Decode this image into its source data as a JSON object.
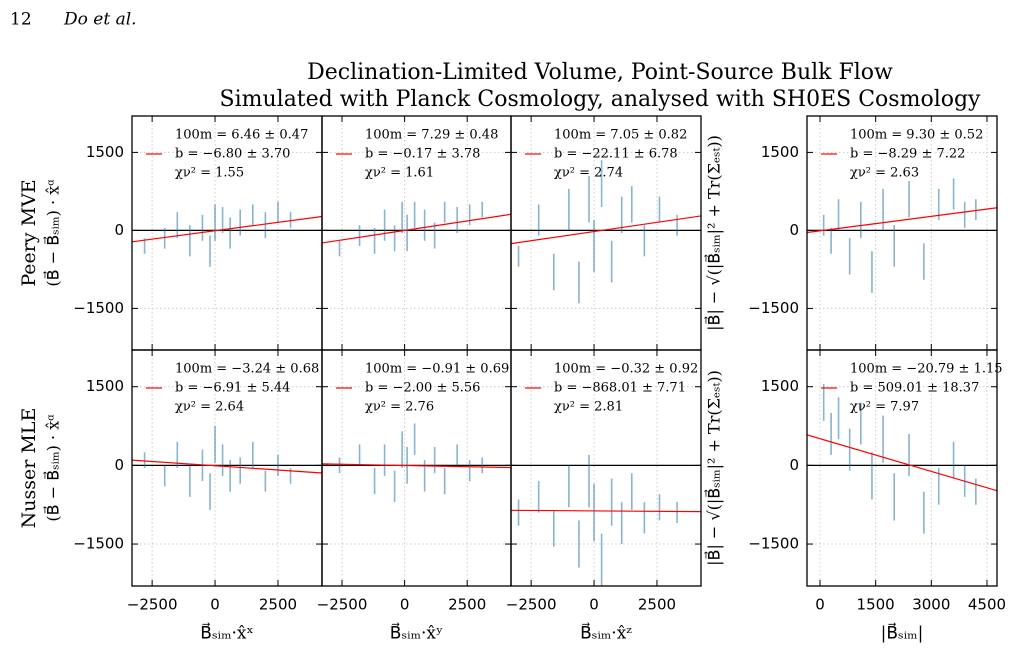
{
  "header": {
    "page": "12",
    "authors": "Do et al."
  },
  "title": [
    "Declination-Limited Volume, Point-Source Bulk Flow",
    "Simulated with Planck Cosmology, analysed with SH0ES Cosmology"
  ],
  "chart_data": [
    {
      "type": "scatter",
      "row_label": "Peery MVE",
      "ylabel": "(B⃗ − B⃗ₛᵢₘ) · x̂ᵅ",
      "xlim": [
        -3300,
        4250
      ],
      "ylim": [
        -2300,
        2200
      ],
      "xticks": [
        -2500,
        0,
        2500
      ],
      "yticks": [
        {
          "value": -1500,
          "label": "−1500"
        },
        0,
        1500
      ],
      "grid": true,
      "annotation": [
        "100m = 6.46 ± 0.47",
        "b = −6.80 ± 3.70",
        "χν² = 1.55"
      ],
      "series": [
        {
          "color": "#1f77b4",
          "x": [
            -2800,
            -2000,
            -1500,
            -1000,
            -500,
            -200,
            0,
            300,
            600,
            1000,
            1500,
            2000,
            2500,
            3000
          ],
          "values": [
            -300,
            -150,
            100,
            -200,
            50,
            -400,
            150,
            200,
            -50,
            150,
            300,
            100,
            350,
            200
          ],
          "errors": [
            150,
            200,
            250,
            300,
            250,
            300,
            350,
            250,
            300,
            250,
            200,
            250,
            200,
            150
          ]
        },
        {
          "color": "#ff0000",
          "x": [
            -3300,
            4250
          ],
          "values": [
            -220,
            268
          ]
        }
      ]
    },
    {
      "type": "scatter",
      "xlim": [
        -3300,
        4250
      ],
      "ylim": [
        -2300,
        2200
      ],
      "xticks": [
        -2500,
        0,
        2500
      ],
      "yticks": [
        -1500,
        0,
        1500
      ],
      "grid": true,
      "annotation": [
        "100m = 7.29 ± 0.48",
        "b = −0.17 ± 3.78",
        "χν² = 1.61"
      ],
      "series": [
        {
          "color": "#1f77b4",
          "x": [
            -2600,
            -1800,
            -1200,
            -800,
            -400,
            -100,
            100,
            400,
            800,
            1200,
            1600,
            2100,
            2600,
            3100
          ],
          "values": [
            -350,
            -100,
            -200,
            100,
            -150,
            250,
            -50,
            300,
            100,
            -100,
            350,
            200,
            300,
            400
          ],
          "errors": [
            150,
            200,
            250,
            300,
            250,
            300,
            350,
            250,
            300,
            250,
            200,
            250,
            200,
            150
          ]
        },
        {
          "color": "#ff0000",
          "x": [
            -3300,
            4250
          ],
          "values": [
            -241,
            310
          ]
        }
      ]
    },
    {
      "type": "scatter",
      "xlim": [
        -3300,
        4250
      ],
      "ylim": [
        -2300,
        2200
      ],
      "xticks": [
        -2500,
        0,
        2500
      ],
      "yticks": [
        -1500,
        0,
        1500
      ],
      "grid": true,
      "annotation": [
        "100m = 7.05 ± 0.82",
        "b = −22.11 ± 6.78",
        "χν² = 2.74"
      ],
      "series": [
        {
          "color": "#1f77b4",
          "x": [
            -3000,
            -2200,
            -1600,
            -1000,
            -600,
            -200,
            0,
            300,
            700,
            1100,
            1500,
            2000,
            2600,
            3300
          ],
          "values": [
            -500,
            200,
            -800,
            400,
            -1000,
            600,
            -300,
            900,
            -600,
            300,
            500,
            -200,
            400,
            100
          ],
          "errors": [
            200,
            300,
            350,
            400,
            400,
            450,
            500,
            450,
            400,
            350,
            350,
            300,
            250,
            200
          ]
        },
        {
          "color": "#ff0000",
          "x": [
            -3300,
            4250
          ],
          "values": [
            -255,
            278
          ]
        }
      ]
    },
    {
      "type": "scatter",
      "ylabel": "|B⃗| − √(|B⃗ₛᵢₘ|² + Tr(Σₑₛₜ))",
      "xlim": [
        -350,
        4770
      ],
      "ylim": [
        -2300,
        2200
      ],
      "xticks": [
        0,
        1500,
        3000,
        4500
      ],
      "yticks": [
        {
          "value": -1500,
          "label": "−1500"
        },
        0,
        1500
      ],
      "grid": true,
      "annotation": [
        "100m = 9.30 ± 0.52",
        "b = −8.29 ± 7.22",
        "χν² = 2.63"
      ],
      "series": [
        {
          "color": "#1f77b4",
          "x": [
            100,
            300,
            500,
            800,
            1100,
            1400,
            1700,
            2000,
            2400,
            2800,
            3200,
            3600,
            3900,
            4200
          ],
          "values": [
            100,
            -200,
            300,
            -500,
            200,
            -800,
            400,
            -300,
            600,
            -600,
            500,
            700,
            300,
            400
          ],
          "errors": [
            200,
            250,
            300,
            350,
            350,
            400,
            400,
            400,
            350,
            350,
            300,
            300,
            250,
            200
          ]
        },
        {
          "color": "#ff0000",
          "x": [
            -350,
            4770
          ],
          "values": [
            -41,
            435
          ]
        }
      ]
    },
    {
      "type": "scatter",
      "row_label": "Nusser MLE",
      "ylabel": "(B⃗ − B⃗ₛᵢₘ) · x̂ᵅ",
      "xlabel": "B⃗ₛᵢₘ·x̂ˣ",
      "xlim": [
        -3300,
        4250
      ],
      "ylim": [
        -2300,
        2200
      ],
      "xticks": [
        {
          "value": -2500,
          "label": "−2500"
        },
        0,
        2500
      ],
      "yticks": [
        {
          "value": -1500,
          "label": "−1500"
        },
        0,
        1500
      ],
      "grid": true,
      "annotation": [
        "100m = −3.24 ± 0.68",
        "b = −6.91 ± 5.44",
        "χν² = 2.64"
      ],
      "series": [
        {
          "color": "#1f77b4",
          "x": [
            -2800,
            -2000,
            -1500,
            -1000,
            -500,
            -200,
            0,
            300,
            600,
            1000,
            1500,
            2000,
            2500,
            3000
          ],
          "values": [
            100,
            -200,
            200,
            -300,
            0,
            -500,
            400,
            100,
            -200,
            -100,
            200,
            -300,
            0,
            -200
          ],
          "errors": [
            150,
            200,
            250,
            300,
            300,
            350,
            350,
            300,
            300,
            250,
            250,
            200,
            200,
            150
          ]
        },
        {
          "color": "#ff0000",
          "x": [
            -3300,
            4250
          ],
          "values": [
            100,
            -145
          ]
        }
      ]
    },
    {
      "type": "scatter",
      "xlabel": "B⃗ₛᵢₘ·x̂ʸ",
      "xlim": [
        -3300,
        4250
      ],
      "ylim": [
        -2300,
        2200
      ],
      "xticks": [
        {
          "value": -2500,
          "label": "−2500"
        },
        0,
        2500
      ],
      "yticks": [
        -1500,
        0,
        1500
      ],
      "grid": true,
      "annotation": [
        "100m = −0.91 ± 0.69",
        "b = −2.00 ± 5.56",
        "χν² = 2.76"
      ],
      "series": [
        {
          "color": "#1f77b4",
          "x": [
            -2600,
            -1800,
            -1200,
            -800,
            -400,
            -100,
            100,
            400,
            800,
            1200,
            1600,
            2100,
            2600,
            3100
          ],
          "values": [
            0,
            200,
            -300,
            100,
            -400,
            300,
            0,
            500,
            -200,
            100,
            -300,
            200,
            -100,
            0
          ],
          "errors": [
            150,
            200,
            250,
            300,
            300,
            350,
            350,
            300,
            300,
            250,
            250,
            200,
            200,
            150
          ]
        },
        {
          "color": "#ff0000",
          "x": [
            -3300,
            4250
          ],
          "values": [
            28,
            -41
          ]
        }
      ]
    },
    {
      "type": "scatter",
      "xlabel": "B⃗ₛᵢₘ·x̂ᶻ",
      "xlim": [
        -3300,
        4250
      ],
      "ylim": [
        -2300,
        2200
      ],
      "xticks": [
        {
          "value": -2500,
          "label": "−2500"
        },
        0,
        2500
      ],
      "yticks": [
        -1500,
        0,
        1500
      ],
      "grid": true,
      "annotation": [
        "100m = −0.32 ± 0.92",
        "b = −868.01 ± 7.71",
        "χν² = 2.81"
      ],
      "series": [
        {
          "color": "#1f77b4",
          "x": [
            -3000,
            -2200,
            -1600,
            -1000,
            -600,
            -200,
            0,
            300,
            700,
            1100,
            1500,
            2000,
            2600,
            3300
          ],
          "values": [
            -900,
            -600,
            -1200,
            -400,
            -1500,
            -300,
            -900,
            -1800,
            -700,
            -1100,
            -500,
            -1000,
            -800,
            -900
          ],
          "errors": [
            250,
            300,
            350,
            400,
            450,
            500,
            550,
            500,
            450,
            400,
            350,
            300,
            250,
            200
          ]
        },
        {
          "color": "#ff0000",
          "x": [
            -3300,
            4250
          ],
          "values": [
            -857,
            -882
          ]
        }
      ]
    },
    {
      "type": "scatter",
      "ylabel": "|B⃗| − √(|B⃗ₛᵢₘ|² + Tr(Σₑₛₜ))",
      "xlabel": "|B⃗ₛᵢₘ|",
      "xlim": [
        -350,
        4770
      ],
      "ylim": [
        -2300,
        2200
      ],
      "xticks": [
        0,
        1500,
        3000,
        4500
      ],
      "yticks": [
        {
          "value": -1500,
          "label": "−1500"
        },
        0,
        1500
      ],
      "grid": true,
      "annotation": [
        "100m = −20.79 ± 1.15",
        "b = 509.01 ± 18.37",
        "χν² = 7.97"
      ],
      "series": [
        {
          "color": "#1f77b4",
          "x": [
            100,
            300,
            500,
            800,
            1100,
            1400,
            1700,
            2000,
            2400,
            2800,
            3200,
            3600,
            3900,
            4200
          ],
          "values": [
            1200,
            600,
            900,
            300,
            800,
            -200,
            500,
            -600,
            200,
            -900,
            -400,
            100,
            -300,
            -500
          ],
          "errors": [
            350,
            400,
            400,
            400,
            400,
            450,
            450,
            450,
            400,
            400,
            350,
            350,
            300,
            250
          ]
        },
        {
          "color": "#ff0000",
          "x": [
            -350,
            4770
          ],
          "values": [
            582,
            -483
          ]
        }
      ]
    }
  ]
}
